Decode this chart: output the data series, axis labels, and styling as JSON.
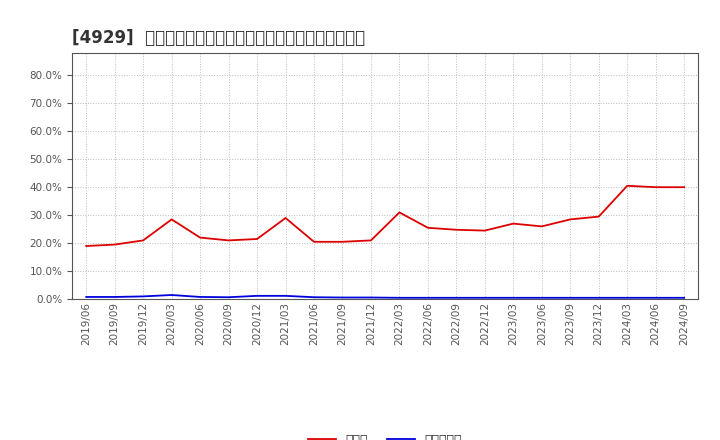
{
  "title": "[4929]  現預金、有利子負債の総資産に対する比率の推移",
  "x_labels": [
    "2019/06",
    "2019/09",
    "2019/12",
    "2020/03",
    "2020/06",
    "2020/09",
    "2020/12",
    "2021/03",
    "2021/06",
    "2021/09",
    "2021/12",
    "2022/03",
    "2022/06",
    "2022/09",
    "2022/12",
    "2023/03",
    "2023/06",
    "2023/09",
    "2023/12",
    "2024/03",
    "2024/06",
    "2024/09"
  ],
  "cash_values": [
    0.19,
    0.195,
    0.21,
    0.285,
    0.22,
    0.21,
    0.215,
    0.29,
    0.205,
    0.205,
    0.21,
    0.31,
    0.255,
    0.248,
    0.245,
    0.27,
    0.26,
    0.285,
    0.295,
    0.405,
    0.4,
    0.4
  ],
  "debt_values": [
    0.008,
    0.008,
    0.01,
    0.015,
    0.008,
    0.007,
    0.012,
    0.012,
    0.007,
    0.006,
    0.006,
    0.005,
    0.005,
    0.005,
    0.005,
    0.005,
    0.005,
    0.005,
    0.005,
    0.005,
    0.005,
    0.005
  ],
  "cash_color": "#dd0000",
  "debt_color": "#0000dd",
  "bg_color": "#ffffff",
  "plot_bg_color": "#ffffff",
  "grid_color": "#bbbbbb",
  "ylabel_values": [
    0.0,
    0.1,
    0.2,
    0.3,
    0.4,
    0.5,
    0.6,
    0.7,
    0.8
  ],
  "ylim": [
    0.0,
    0.88
  ],
  "legend_cash": "現預金",
  "legend_debt": "有利子負債",
  "title_fontsize": 12,
  "axis_fontsize": 7.5,
  "legend_fontsize": 9
}
